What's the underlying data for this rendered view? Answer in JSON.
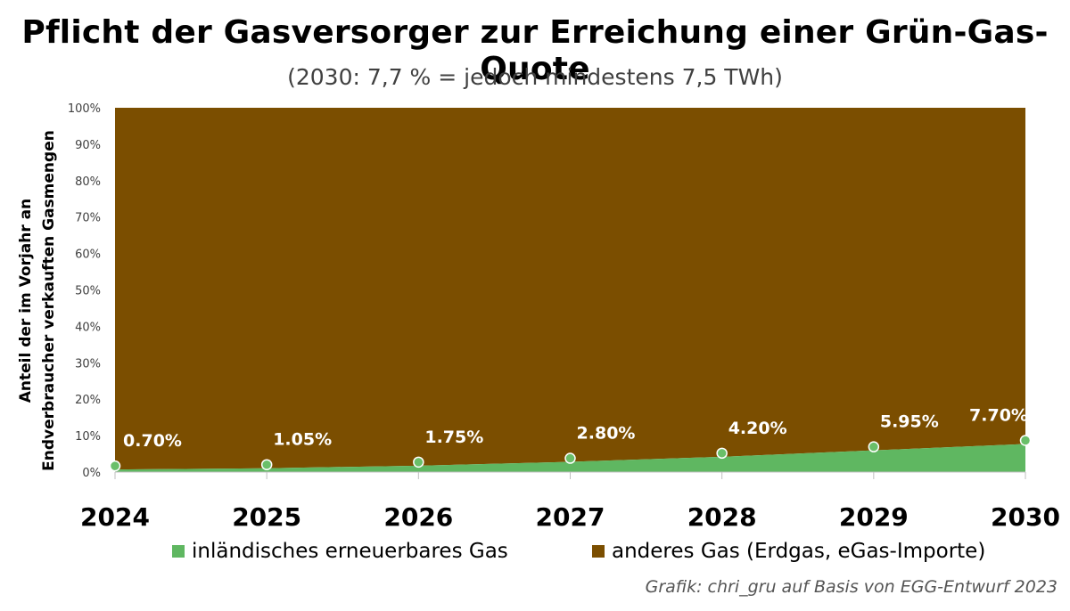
{
  "title": "Pflicht der Gasversorger zur Erreichung einer Grün-Gas-Quote",
  "subtitle": "(2030: 7,7 % = jedoch mindestens 7,5 TWh)",
  "credit": "Grafik: chri_gru auf Basis von EGG-Entwurf 2023",
  "colors": {
    "green": "#5fb761",
    "brown": "#7b4e00",
    "point_fill": "#6abf69",
    "label": "#ffffff"
  },
  "chart_data": {
    "type": "area",
    "stacked": true,
    "ylabel_lines": [
      "Anteil der im Vorjahr an",
      "Endverbraucher verkauften Gasmengen"
    ],
    "x": [
      "2024",
      "2025",
      "2026",
      "2027",
      "2028",
      "2029",
      "2030"
    ],
    "ylim": [
      0,
      100
    ],
    "yticks": [
      "0%",
      "10%",
      "20%",
      "30%",
      "40%",
      "50%",
      "60%",
      "70%",
      "80%",
      "90%",
      "100%"
    ],
    "series": [
      {
        "name": "inländisches erneuerbares Gas",
        "values": [
          0.7,
          1.05,
          1.75,
          2.8,
          4.2,
          5.95,
          7.7
        ],
        "labels": [
          "0.70%",
          "1.05%",
          "1.75%",
          "2.80%",
          "4.20%",
          "5.95%",
          "7.70%"
        ]
      },
      {
        "name": "anderes Gas (Erdgas, eGas-Importe)",
        "values": [
          99.3,
          98.95,
          98.25,
          97.2,
          95.8,
          94.05,
          92.3
        ]
      }
    ],
    "legend_position": "bottom",
    "grid": false
  }
}
